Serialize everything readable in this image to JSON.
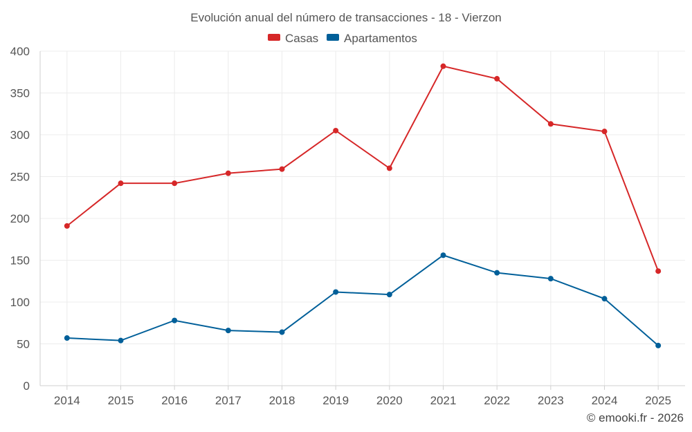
{
  "chart_data": {
    "type": "line",
    "title": "Evolución anual del número de transacciones - 18 - Vierzon",
    "categories": [
      "2014",
      "2015",
      "2016",
      "2017",
      "2018",
      "2019",
      "2020",
      "2021",
      "2022",
      "2023",
      "2024",
      "2025"
    ],
    "series": [
      {
        "name": "Casas",
        "color": "#d62728",
        "values": [
          191,
          242,
          242,
          254,
          259,
          305,
          260,
          382,
          367,
          313,
          304,
          137
        ]
      },
      {
        "name": "Apartamentos",
        "color": "#005f99",
        "values": [
          57,
          54,
          78,
          66,
          64,
          112,
          109,
          156,
          135,
          128,
          104,
          48
        ]
      }
    ],
    "ylim": [
      0,
      400
    ],
    "yticks": [
      0,
      50,
      100,
      150,
      200,
      250,
      300,
      350,
      400
    ],
    "xlabel": "",
    "ylabel": "",
    "grid": true,
    "legend_position": "top-center"
  },
  "footer": {
    "credit": "© emooki.fr - 2026"
  }
}
